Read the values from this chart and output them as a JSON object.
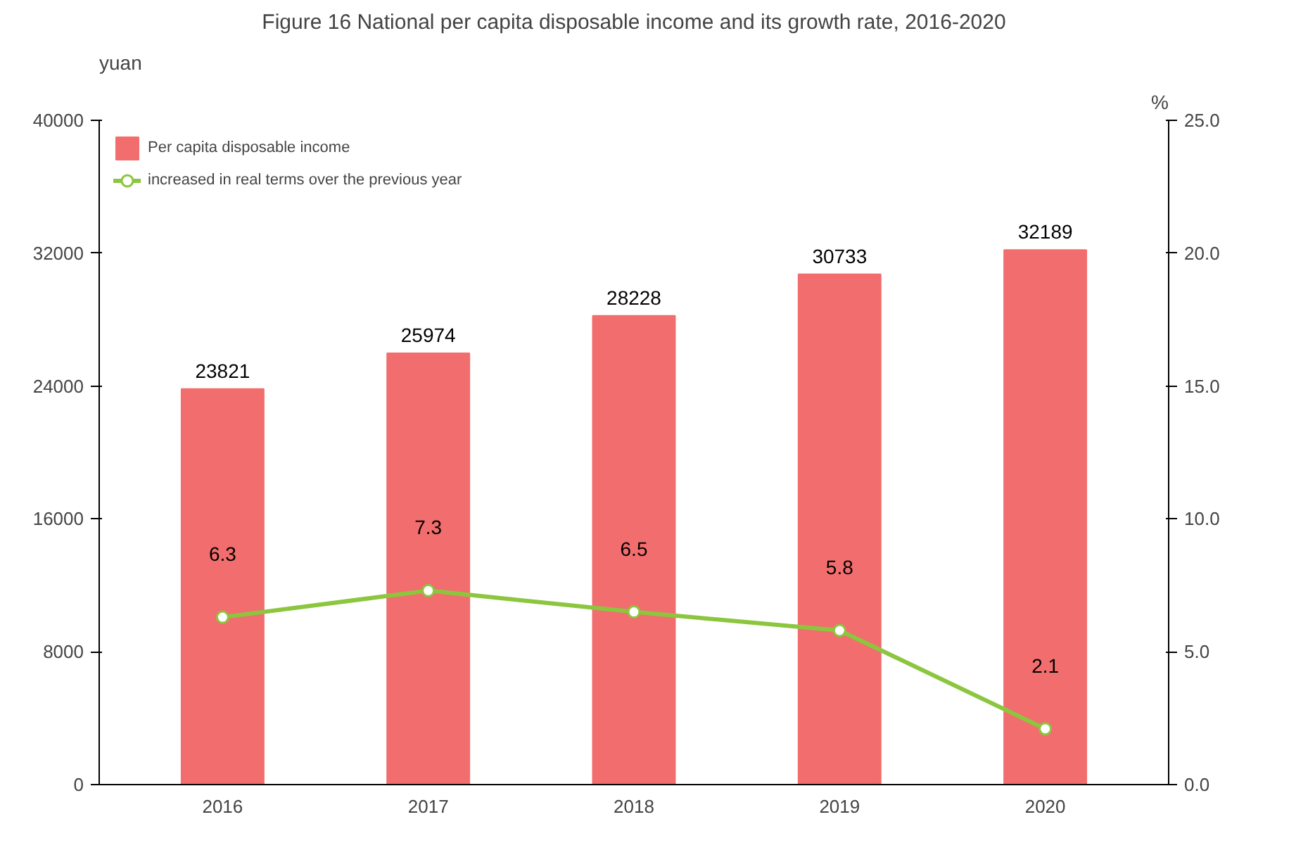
{
  "chart_data": {
    "type": "bar",
    "title": "Figure 16 National per capita disposable income and its growth rate, 2016-2020",
    "ylabel": "yuan",
    "y2label": "%",
    "categories": [
      "2016",
      "2017",
      "2018",
      "2019",
      "2020"
    ],
    "series": [
      {
        "name": "Per capita disposable income",
        "color": "#f26d6d",
        "values": [
          23821,
          25974,
          28228,
          30733,
          32189
        ]
      },
      {
        "name": "increased in real terms over the previous year",
        "type": "line",
        "axis": "y2",
        "color": "#8cc63f",
        "values": [
          6.3,
          7.3,
          6.5,
          5.8,
          2.1
        ]
      }
    ],
    "ylim": [
      0,
      40000
    ],
    "yticks": [
      0,
      8000,
      16000,
      24000,
      32000,
      40000
    ],
    "y2lim": [
      0,
      25
    ],
    "y2ticks": [
      {
        "value": 0,
        "label": "0.0"
      },
      {
        "value": 5,
        "label": "5.0"
      },
      {
        "value": 10,
        "label": "10.0"
      },
      {
        "value": 15,
        "label": "15.0"
      },
      {
        "value": 20,
        "label": "20.0"
      },
      {
        "value": 25,
        "label": "25.0"
      }
    ],
    "data_labels": true,
    "grid": false,
    "legend": "top left",
    "marker": "circle",
    "line_style": "solid"
  }
}
